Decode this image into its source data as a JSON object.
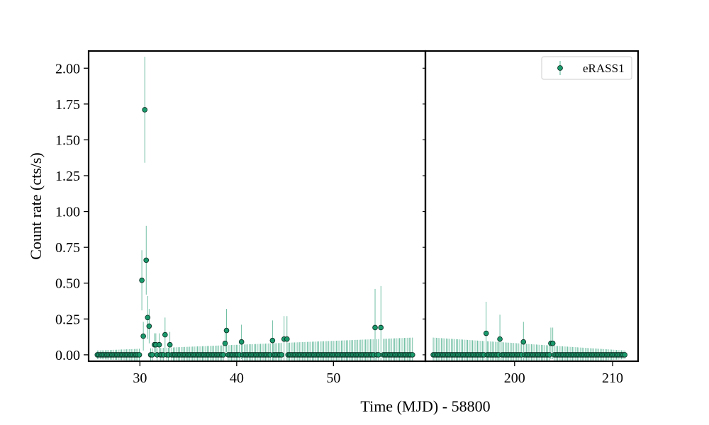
{
  "chart_data": {
    "type": "scatter",
    "title": "",
    "xlabel": "Time (MJD) - 58800",
    "ylabel": "Count rate (cts/s)",
    "y_ticks": [
      "0.00",
      "0.25",
      "0.50",
      "0.75",
      "1.00",
      "1.25",
      "1.50",
      "1.75",
      "2.00"
    ],
    "legend": {
      "placement": "top-right",
      "label": "eRASS1"
    },
    "grid": false,
    "colors": {
      "marker_fill": "#1a9a6c",
      "marker_edge": "#0a2a20",
      "errorbar": "#4fb08e"
    },
    "panels": [
      {
        "xlim": [
          24.7,
          59.5
        ],
        "ylim": [
          -0.045,
          2.12
        ],
        "x_ticks": [
          "30",
          "40",
          "50"
        ],
        "x_tick_values": [
          30,
          40,
          50
        ],
        "baseline": {
          "x_start": 25.6,
          "x_end": 58.2,
          "step": 0.167,
          "y": 0.0,
          "err_start": 0.03,
          "err_end": 0.12
        },
        "points": [
          {
            "x": 30.2,
            "y": 0.52,
            "err": 0.21
          },
          {
            "x": 30.35,
            "y": 0.13,
            "err": 0.1
          },
          {
            "x": 30.5,
            "y": 1.71,
            "err": 0.37
          },
          {
            "x": 30.65,
            "y": 0.66,
            "err": 0.24
          },
          {
            "x": 30.8,
            "y": 0.26,
            "err": 0.15
          },
          {
            "x": 30.95,
            "y": 0.2,
            "err": 0.12
          },
          {
            "x": 31.5,
            "y": 0.07,
            "err": 0.08
          },
          {
            "x": 31.65,
            "y": 0.07,
            "err": 0.08
          },
          {
            "x": 32.0,
            "y": 0.07,
            "err": 0.08
          },
          {
            "x": 32.6,
            "y": 0.14,
            "err": 0.12
          },
          {
            "x": 33.1,
            "y": 0.07,
            "err": 0.09
          },
          {
            "x": 38.8,
            "y": 0.08,
            "err": 0.09
          },
          {
            "x": 38.95,
            "y": 0.17,
            "err": 0.15
          },
          {
            "x": 40.5,
            "y": 0.09,
            "err": 0.12
          },
          {
            "x": 43.7,
            "y": 0.1,
            "err": 0.14
          },
          {
            "x": 44.9,
            "y": 0.11,
            "err": 0.16
          },
          {
            "x": 45.2,
            "y": 0.11,
            "err": 0.16
          },
          {
            "x": 54.3,
            "y": 0.19,
            "err": 0.27
          },
          {
            "x": 54.9,
            "y": 0.19,
            "err": 0.29
          }
        ]
      },
      {
        "xlim": [
          190.9,
          212.6
        ],
        "ylim": [
          -0.045,
          2.12
        ],
        "x_ticks": [
          "200",
          "210"
        ],
        "x_tick_values": [
          200,
          210
        ],
        "baseline": {
          "x_start": 191.7,
          "x_end": 211.3,
          "step": 0.167,
          "y": 0.0,
          "err_start": 0.12,
          "err_end": 0.03
        },
        "points": [
          {
            "x": 197.1,
            "y": 0.15,
            "err": 0.22
          },
          {
            "x": 198.5,
            "y": 0.11,
            "err": 0.17
          },
          {
            "x": 200.9,
            "y": 0.09,
            "err": 0.14
          },
          {
            "x": 203.7,
            "y": 0.08,
            "err": 0.11
          },
          {
            "x": 203.9,
            "y": 0.08,
            "err": 0.11
          }
        ]
      }
    ]
  }
}
